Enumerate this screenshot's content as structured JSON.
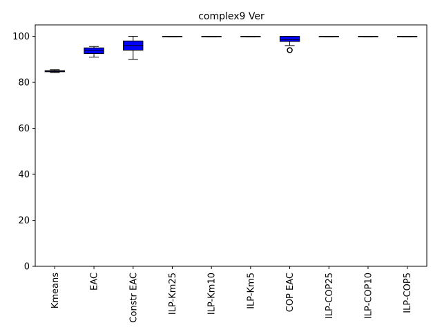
{
  "chart_data": {
    "type": "box",
    "title": "complex9 Ver",
    "xlabel": "",
    "ylabel": "",
    "ylim": [
      0,
      105
    ],
    "yticks": [
      0,
      20,
      40,
      60,
      80,
      100
    ],
    "grid": false,
    "box_color": "#0000ff",
    "categories": [
      "Kmeans",
      "EAC",
      "Constr EAC",
      "ILP-Km25",
      "ILP-Km10",
      "ILP-Km5",
      "COP EAC",
      "ILP-COP25",
      "ILP-COP10",
      "ILP-COP5"
    ],
    "boxes": [
      {
        "whisker_low": 84.3,
        "q1": 84.6,
        "median": 84.9,
        "q3": 85.1,
        "whisker_high": 85.5,
        "outliers": []
      },
      {
        "whisker_low": 91.0,
        "q1": 92.5,
        "median": 94.0,
        "q3": 95.0,
        "whisker_high": 95.6,
        "outliers": []
      },
      {
        "whisker_low": 90.0,
        "q1": 94.0,
        "median": 96.0,
        "q3": 98.0,
        "whisker_high": 100.0,
        "outliers": []
      },
      {
        "whisker_low": 99.8,
        "q1": 99.9,
        "median": 100.0,
        "q3": 100.0,
        "whisker_high": 100.0,
        "outliers": []
      },
      {
        "whisker_low": 99.8,
        "q1": 99.9,
        "median": 100.0,
        "q3": 100.0,
        "whisker_high": 100.0,
        "outliers": []
      },
      {
        "whisker_low": 99.8,
        "q1": 99.9,
        "median": 100.0,
        "q3": 100.0,
        "whisker_high": 100.0,
        "outliers": []
      },
      {
        "whisker_low": 96.0,
        "q1": 97.8,
        "median": 98.5,
        "q3": 100.0,
        "whisker_high": 100.0,
        "outliers": [
          94.0
        ]
      },
      {
        "whisker_low": 99.8,
        "q1": 99.9,
        "median": 100.0,
        "q3": 100.0,
        "whisker_high": 100.0,
        "outliers": []
      },
      {
        "whisker_low": 99.8,
        "q1": 99.9,
        "median": 100.0,
        "q3": 100.0,
        "whisker_high": 100.0,
        "outliers": []
      },
      {
        "whisker_low": 99.8,
        "q1": 99.9,
        "median": 100.0,
        "q3": 100.0,
        "whisker_high": 100.0,
        "outliers": []
      }
    ]
  }
}
